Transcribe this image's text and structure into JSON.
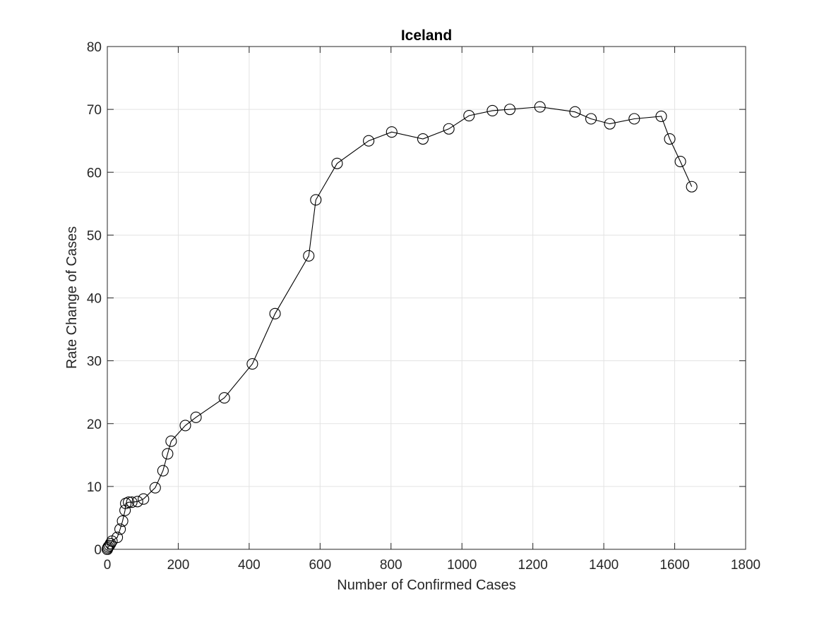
{
  "chart_data": {
    "type": "line",
    "title": "Iceland",
    "xlabel": "Number of Confirmed Cases",
    "ylabel": "Rate Change of Cases",
    "xlim": [
      0,
      1800
    ],
    "ylim": [
      0,
      80
    ],
    "xticks": [
      0,
      200,
      400,
      600,
      800,
      1000,
      1200,
      1400,
      1600,
      1800
    ],
    "yticks": [
      0,
      10,
      20,
      30,
      40,
      50,
      60,
      70,
      80
    ],
    "grid": true,
    "marker": "circle",
    "line_color": "#000000",
    "series": [
      {
        "x": [
          0,
          1,
          3,
          6,
          9,
          13,
          28,
          36,
          43,
          50,
          52,
          60,
          69,
          85,
          102,
          135,
          157,
          170,
          180,
          220,
          250,
          330,
          409,
          473,
          568,
          588,
          648,
          737,
          802,
          890,
          963,
          1020,
          1086,
          1135,
          1220,
          1319,
          1364,
          1417,
          1486,
          1562,
          1586,
          1616,
          1648
        ],
        "y": [
          0,
          0.2,
          0.4,
          0.6,
          0.9,
          1.3,
          1.9,
          3.2,
          4.5,
          6.2,
          7.3,
          7.5,
          7.5,
          7.6,
          8.0,
          9.8,
          12.5,
          15.2,
          17.2,
          19.7,
          21.0,
          24.1,
          29.5,
          37.5,
          46.7,
          55.6,
          61.4,
          65.0,
          66.4,
          65.3,
          66.9,
          69.0,
          69.8,
          70.0,
          70.4,
          69.6,
          68.5,
          67.7,
          68.5,
          68.9,
          65.3,
          61.7,
          57.7
        ]
      }
    ]
  }
}
